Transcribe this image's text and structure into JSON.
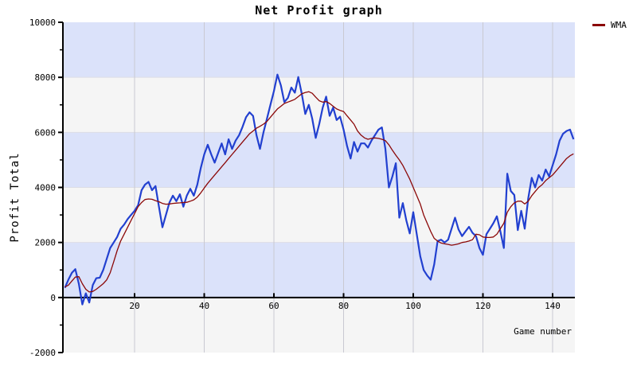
{
  "header": {
    "title": "Net Profit graph"
  },
  "legend": {
    "position": "top-right",
    "items": [
      {
        "label": "WMA",
        "color": "#8b0808"
      }
    ]
  },
  "colors": {
    "background": "#ffffff",
    "band_blue": "#dbe2fa",
    "band_gray": "#f5f5f5",
    "grid_vertical": "#c9c9d2",
    "band_edge": "#dcdde6",
    "axis": "#000000",
    "profit_line": "#2240d0",
    "wma_line": "#8b0808",
    "text": "#000000"
  },
  "chart_data": {
    "type": "line",
    "title": "Net Profit graph",
    "xlabel": "Game number",
    "ylabel": "Profit Total",
    "xlim": [
      0,
      146
    ],
    "ylim": [
      -2000,
      10000
    ],
    "x_ticks": [
      20,
      40,
      60,
      80,
      100,
      120,
      140
    ],
    "y_ticks": [
      -2000,
      0,
      2000,
      4000,
      6000,
      8000,
      10000
    ],
    "y_minor_ticks": [
      -1000,
      1000,
      3000,
      5000,
      7000,
      9000
    ],
    "grid": "vertical gridlines at x ticks; alternating horizontal bands every 2000",
    "legend_position": "top-right",
    "x_note": "x = game number, sequential integers 0..146, one point per game",
    "series": [
      {
        "name": "Net Profit",
        "color": "#2240d0",
        "width": 2.2,
        "values": [
          350,
          650,
          900,
          1030,
          500,
          -250,
          150,
          -180,
          450,
          700,
          720,
          1000,
          1400,
          1800,
          2000,
          2200,
          2500,
          2650,
          2850,
          3000,
          3150,
          3350,
          3900,
          4100,
          4200,
          3900,
          4050,
          3300,
          2550,
          3000,
          3450,
          3700,
          3500,
          3750,
          3300,
          3700,
          3950,
          3700,
          4100,
          4700,
          5200,
          5550,
          5200,
          4900,
          5250,
          5600,
          5200,
          5750,
          5400,
          5700,
          5900,
          6200,
          6550,
          6730,
          6600,
          5900,
          5400,
          6000,
          6500,
          7000,
          7500,
          8100,
          7700,
          7100,
          7250,
          7630,
          7440,
          8010,
          7400,
          6670,
          7000,
          6500,
          5800,
          6300,
          6900,
          7300,
          6600,
          6900,
          6450,
          6570,
          6100,
          5500,
          5050,
          5650,
          5300,
          5600,
          5600,
          5450,
          5700,
          5900,
          6100,
          6180,
          5400,
          4000,
          4400,
          4880,
          2900,
          3430,
          2800,
          2330,
          3100,
          2300,
          1500,
          1000,
          800,
          650,
          1200,
          2050,
          2100,
          2000,
          2100,
          2500,
          2900,
          2470,
          2230,
          2400,
          2570,
          2350,
          2230,
          1800,
          1550,
          2300,
          2500,
          2700,
          2950,
          2400,
          1800,
          4500,
          3870,
          3725,
          2450,
          3150,
          2500,
          3600,
          4350,
          4000,
          4450,
          4250,
          4650,
          4400,
          4800,
          5200,
          5700,
          5950,
          6050,
          6100,
          5750
        ]
      },
      {
        "name": "WMA",
        "color": "#8b0808",
        "width": 1.3,
        "values": [
          380,
          450,
          600,
          740,
          760,
          500,
          300,
          200,
          220,
          300,
          400,
          500,
          640,
          900,
          1300,
          1700,
          2050,
          2300,
          2550,
          2800,
          3050,
          3300,
          3450,
          3560,
          3580,
          3570,
          3520,
          3480,
          3420,
          3390,
          3400,
          3420,
          3430,
          3440,
          3450,
          3460,
          3500,
          3550,
          3650,
          3800,
          3980,
          4150,
          4300,
          4450,
          4600,
          4750,
          4900,
          5050,
          5200,
          5350,
          5500,
          5650,
          5800,
          5950,
          6050,
          6150,
          6220,
          6300,
          6400,
          6550,
          6700,
          6850,
          6950,
          7050,
          7100,
          7150,
          7200,
          7300,
          7400,
          7450,
          7480,
          7420,
          7280,
          7150,
          7100,
          7120,
          7050,
          6950,
          6850,
          6800,
          6760,
          6600,
          6450,
          6300,
          6050,
          5900,
          5800,
          5750,
          5780,
          5800,
          5780,
          5750,
          5700,
          5550,
          5350,
          5170,
          5000,
          4800,
          4550,
          4300,
          4000,
          3700,
          3400,
          3000,
          2700,
          2400,
          2150,
          2050,
          1980,
          1950,
          1930,
          1900,
          1920,
          1950,
          2000,
          2020,
          2050,
          2100,
          2300,
          2280,
          2200,
          2180,
          2180,
          2200,
          2300,
          2500,
          2700,
          3100,
          3300,
          3440,
          3500,
          3500,
          3400,
          3500,
          3700,
          3850,
          4000,
          4100,
          4250,
          4350,
          4450,
          4600,
          4750,
          4900,
          5050,
          5150,
          5220
        ]
      }
    ]
  }
}
